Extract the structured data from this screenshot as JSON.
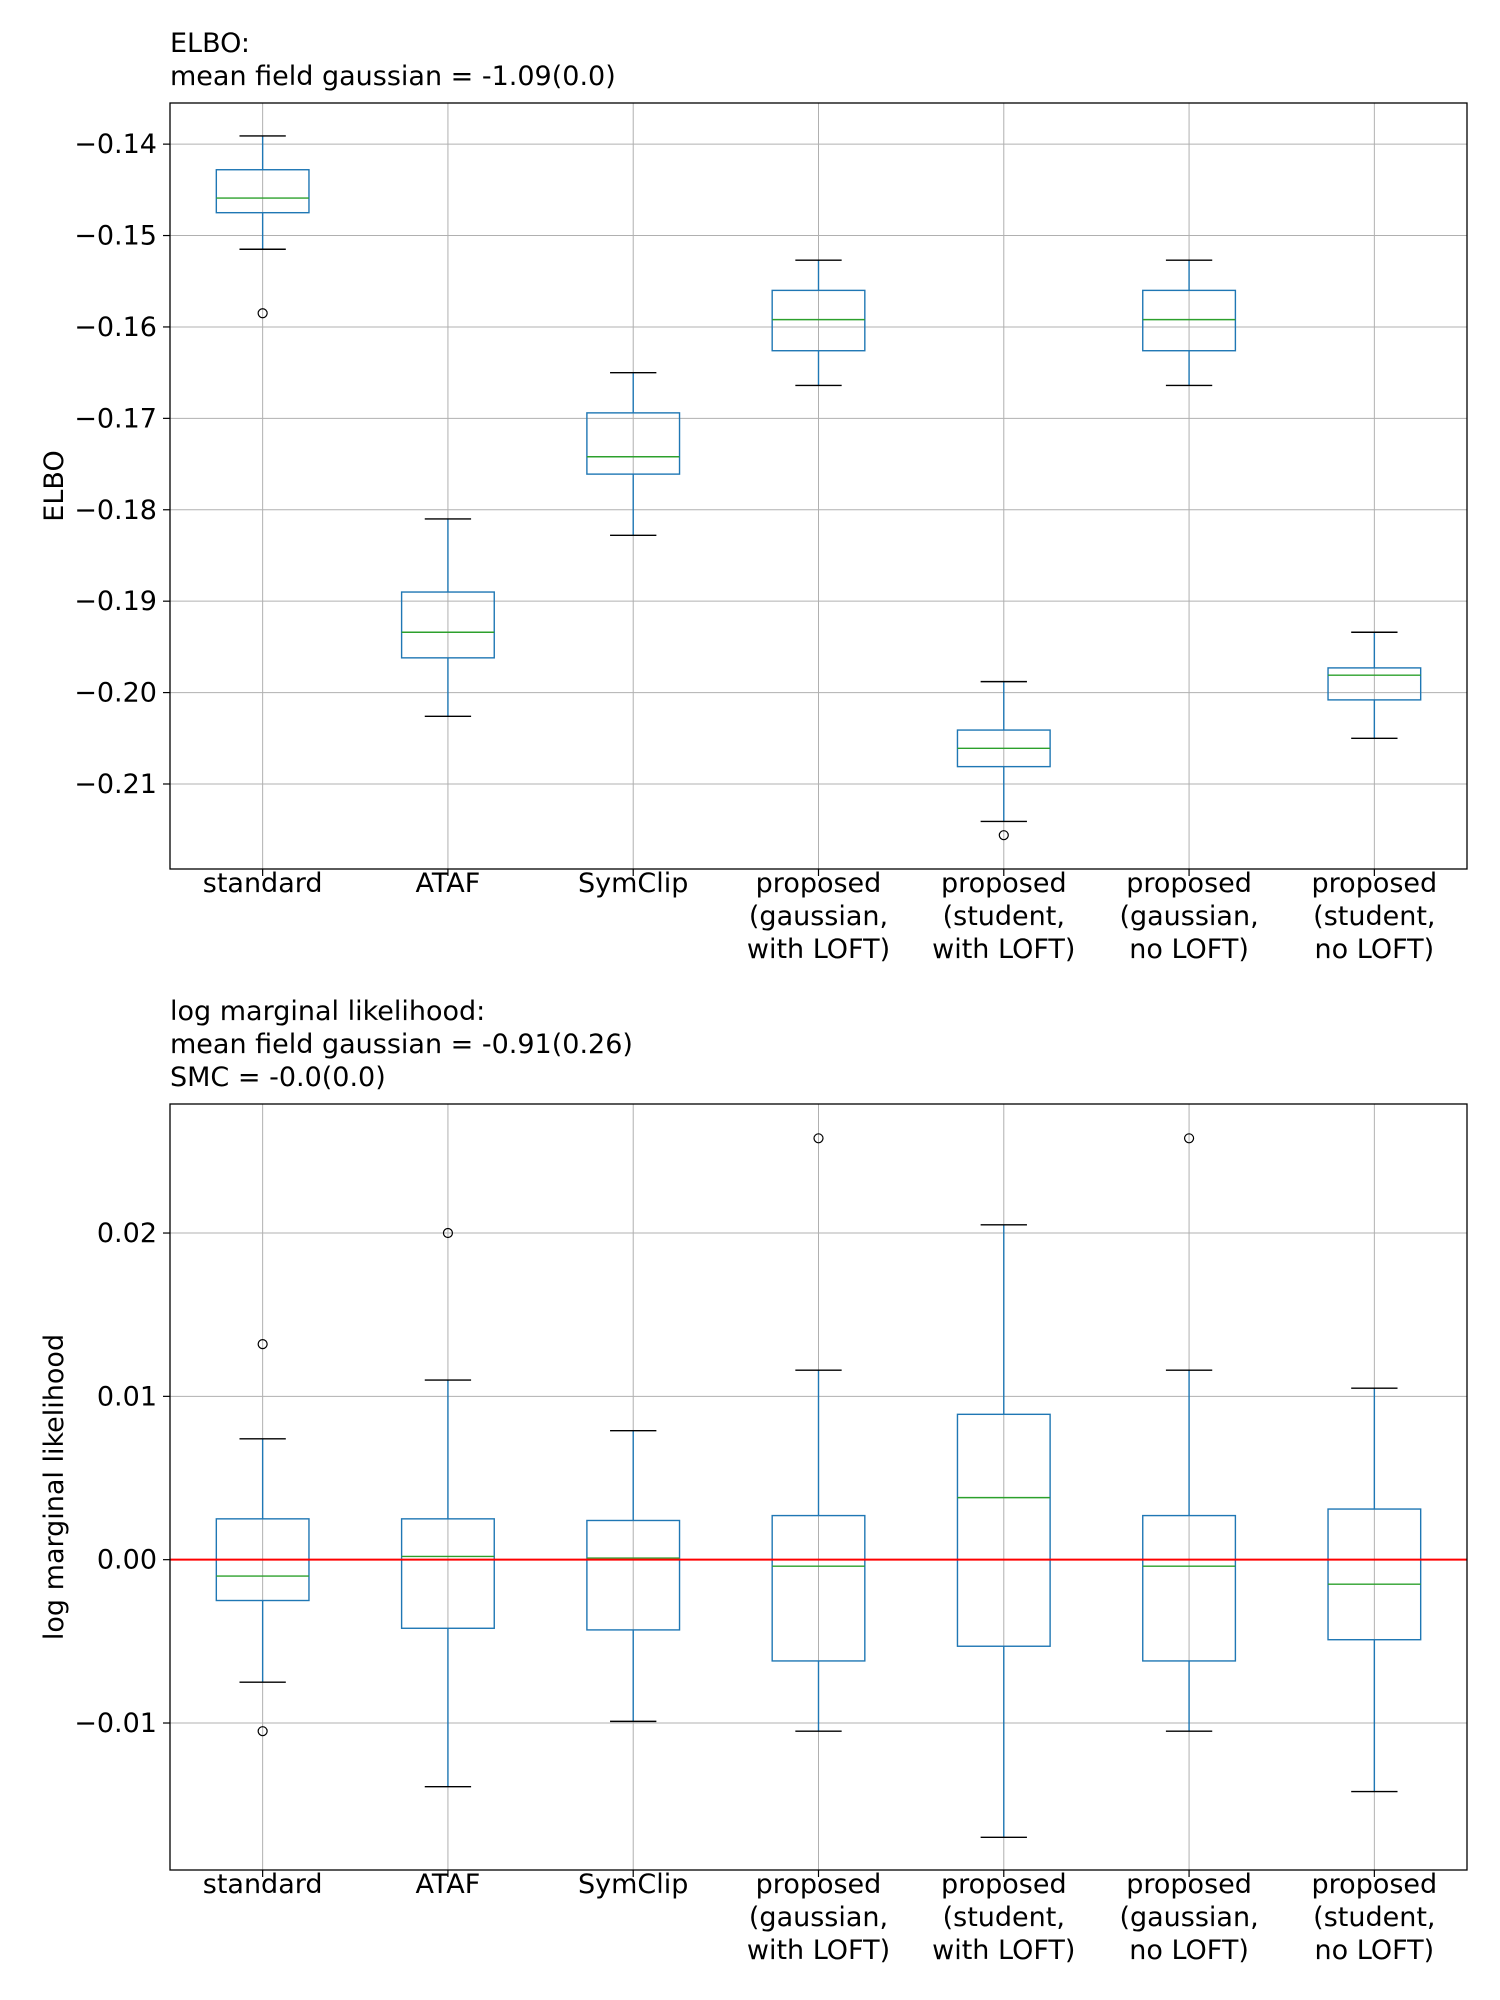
{
  "chart_data": [
    {
      "type": "boxplot",
      "title_lines": [
        "ELBO:",
        "mean field gaussian = -1.09(0.0)"
      ],
      "xlabel": "",
      "ylabel": "ELBO",
      "ylim": [
        -0.2193,
        -0.1355
      ],
      "yticks": [
        -0.14,
        -0.15,
        -0.16,
        -0.17,
        -0.18,
        -0.19,
        -0.2,
        -0.21
      ],
      "ytick_labels": [
        "−0.14",
        "−0.15",
        "−0.16",
        "−0.17",
        "−0.18",
        "−0.19",
        "−0.20",
        "−0.21"
      ],
      "grid": true,
      "reference_line": null,
      "categories": [
        [
          "standard"
        ],
        [
          "ATAF"
        ],
        [
          "SymClip"
        ],
        [
          "proposed",
          "(gaussian,",
          "with LOFT)"
        ],
        [
          "proposed",
          "(student,",
          "with LOFT)"
        ],
        [
          "proposed",
          "(gaussian,",
          "no LOFT)"
        ],
        [
          "proposed",
          "(student,",
          "no LOFT)"
        ]
      ],
      "boxes": [
        {
          "whislo": -0.1515,
          "q1": -0.1475,
          "med": -0.1459,
          "q3": -0.1428,
          "whishi": -0.1391,
          "fliers": [
            -0.1585
          ]
        },
        {
          "whislo": -0.2026,
          "q1": -0.1962,
          "med": -0.1934,
          "q3": -0.189,
          "whishi": -0.181,
          "fliers": []
        },
        {
          "whislo": -0.1828,
          "q1": -0.1761,
          "med": -0.1742,
          "q3": -0.1694,
          "whishi": -0.165,
          "fliers": []
        },
        {
          "whislo": -0.1664,
          "q1": -0.1626,
          "med": -0.1592,
          "q3": -0.156,
          "whishi": -0.1527,
          "fliers": []
        },
        {
          "whislo": -0.2141,
          "q1": -0.2081,
          "med": -0.2061,
          "q3": -0.2041,
          "whishi": -0.1988,
          "fliers": [
            -0.2156
          ]
        },
        {
          "whislo": -0.1664,
          "q1": -0.1626,
          "med": -0.1592,
          "q3": -0.156,
          "whishi": -0.1527,
          "fliers": []
        },
        {
          "whislo": -0.205,
          "q1": -0.2008,
          "med": -0.1981,
          "q3": -0.1973,
          "whishi": -0.1934,
          "fliers": []
        }
      ]
    },
    {
      "type": "boxplot",
      "title_lines": [
        "log marginal likelihood:",
        "mean field gaussian = -0.91(0.26)",
        "SMC = -0.0(0.0)"
      ],
      "xlabel": "",
      "ylabel": "log marginal likelihood",
      "ylim": [
        -0.019,
        0.0279
      ],
      "yticks": [
        0.02,
        0.01,
        0.0,
        -0.01
      ],
      "ytick_labels": [
        "0.02",
        "0.01",
        "0.00",
        "−0.01"
      ],
      "grid": true,
      "reference_line": {
        "y": 0.0,
        "color": "#ff0000"
      },
      "categories": [
        [
          "standard"
        ],
        [
          "ATAF"
        ],
        [
          "SymClip"
        ],
        [
          "proposed",
          "(gaussian,",
          "with LOFT)"
        ],
        [
          "proposed",
          "(student,",
          "with LOFT)"
        ],
        [
          "proposed",
          "(gaussian,",
          "no LOFT)"
        ],
        [
          "proposed",
          "(student,",
          "no LOFT)"
        ]
      ],
      "boxes": [
        {
          "whislo": -0.0075,
          "q1": -0.0025,
          "med": -0.001,
          "q3": 0.0025,
          "whishi": 0.0074,
          "fliers": [
            0.0132,
            -0.0105
          ]
        },
        {
          "whislo": -0.0139,
          "q1": -0.0042,
          "med": 0.0002,
          "q3": 0.0025,
          "whishi": 0.011,
          "fliers": [
            0.02
          ]
        },
        {
          "whislo": -0.0099,
          "q1": -0.0043,
          "med": 0.0001,
          "q3": 0.0024,
          "whishi": 0.0079,
          "fliers": []
        },
        {
          "whislo": -0.0105,
          "q1": -0.0062,
          "med": -0.0004,
          "q3": 0.0027,
          "whishi": 0.0116,
          "fliers": [
            0.0258
          ]
        },
        {
          "whislo": -0.017,
          "q1": -0.0053,
          "med": 0.0038,
          "q3": 0.0089,
          "whishi": 0.0205,
          "fliers": []
        },
        {
          "whislo": -0.0105,
          "q1": -0.0062,
          "med": -0.0004,
          "q3": 0.0027,
          "whishi": 0.0116,
          "fliers": [
            0.0258
          ]
        },
        {
          "whislo": -0.0142,
          "q1": -0.0049,
          "med": -0.0015,
          "q3": 0.0031,
          "whishi": 0.0105,
          "fliers": []
        }
      ]
    }
  ],
  "colors": {
    "box": "#1f77b4",
    "median": "#2ca02c",
    "cap": "#000000",
    "grid": "#b0b0b0",
    "reference": "#ff0000"
  }
}
